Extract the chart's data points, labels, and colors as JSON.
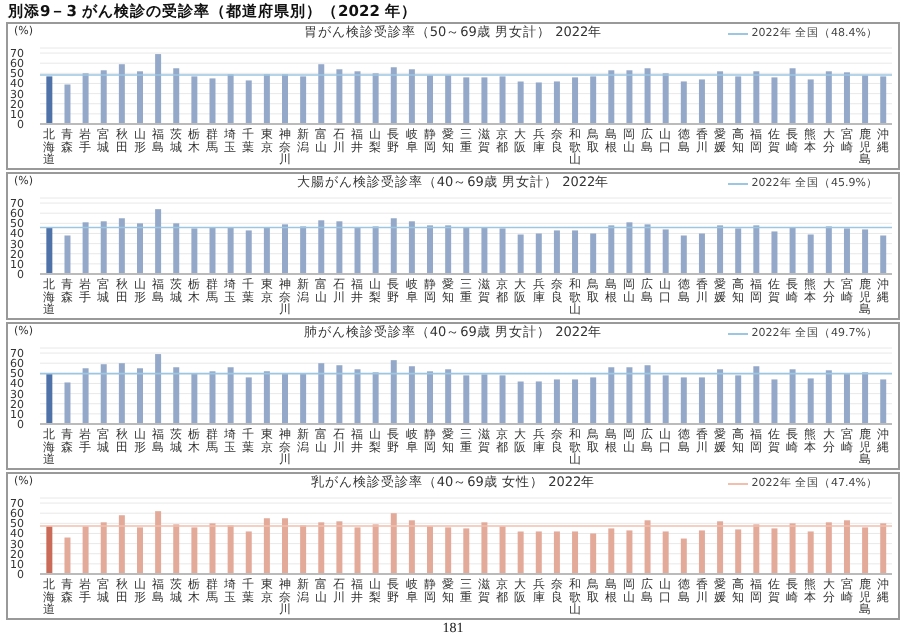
{
  "chart_data": [
    {
      "type": "bar",
      "title": "胃がん検診受診率（50～69歳 男女計） 2022年",
      "ylabel": "(%)",
      "annotations": [
        "別添9－3 がん検診の受診率（都道府県別）（2022 年）"
      ],
      "categories": [
        "北海道",
        "青森",
        "岩手",
        "宮城",
        "秋田",
        "山形",
        "福島",
        "茨城",
        "栃木",
        "群馬",
        "埼玉",
        "千葉",
        "東京",
        "神奈川",
        "新潟",
        "富山",
        "石川",
        "福井",
        "山梨",
        "長野",
        "岐阜",
        "静岡",
        "愛知",
        "三重",
        "滋賀",
        "京都",
        "大阪",
        "兵庫",
        "奈良",
        "和歌山",
        "鳥取",
        "島根",
        "岡山",
        "広島",
        "山口",
        "徳島",
        "香川",
        "愛媛",
        "高知",
        "福岡",
        "佐賀",
        "長崎",
        "熊本",
        "大分",
        "宮崎",
        "鹿児島",
        "沖縄"
      ],
      "values": [
        47,
        39,
        50,
        53,
        59,
        52,
        69,
        55,
        47,
        45,
        49,
        43,
        49,
        49,
        47,
        59,
        54,
        52,
        50,
        56,
        54,
        48,
        48,
        46,
        46,
        47,
        42,
        41,
        42,
        46,
        47,
        53,
        53,
        55,
        50,
        42,
        44,
        52,
        47,
        52,
        46,
        55,
        44,
        52,
        51,
        48,
        47
      ],
      "colors": [
        "#4f72a8",
        "#94a9c9",
        "#94a9c9",
        "#94a9c9",
        "#94a9c9",
        "#94a9c9",
        "#94a9c9",
        "#94a9c9",
        "#94a9c9",
        "#94a9c9",
        "#94a9c9",
        "#94a9c9",
        "#94a9c9",
        "#94a9c9",
        "#94a9c9",
        "#94a9c9",
        "#94a9c9",
        "#94a9c9",
        "#94a9c9",
        "#94a9c9",
        "#94a9c9",
        "#94a9c9",
        "#94a9c9",
        "#94a9c9",
        "#94a9c9",
        "#94a9c9",
        "#94a9c9",
        "#94a9c9",
        "#94a9c9",
        "#94a9c9",
        "#94a9c9",
        "#94a9c9",
        "#94a9c9",
        "#94a9c9",
        "#94a9c9",
        "#94a9c9",
        "#94a9c9",
        "#94a9c9",
        "#94a9c9",
        "#94a9c9",
        "#94a9c9",
        "#94a9c9",
        "#94a9c9",
        "#94a9c9",
        "#94a9c9",
        "#94a9c9",
        "#94a9c9"
      ],
      "ylim": [
        0,
        75
      ],
      "yticks": [
        0,
        10,
        20,
        30,
        40,
        50,
        60,
        70
      ],
      "grid": "y",
      "legend": "top right",
      "ref_lines": [
        {
          "axis": "y",
          "value": 48.4,
          "label": "2022年 全国（48.4%）",
          "color": "#9cc6e2"
        }
      ]
    },
    {
      "type": "bar",
      "title": "大腸がん検診受診率（40～69歳 男女計） 2022年",
      "ylabel": "(%)",
      "categories": [
        "北海道",
        "青森",
        "岩手",
        "宮城",
        "秋田",
        "山形",
        "福島",
        "茨城",
        "栃木",
        "群馬",
        "埼玉",
        "千葉",
        "東京",
        "神奈川",
        "新潟",
        "富山",
        "石川",
        "福井",
        "山梨",
        "長野",
        "岐阜",
        "静岡",
        "愛知",
        "三重",
        "滋賀",
        "京都",
        "大阪",
        "兵庫",
        "奈良",
        "和歌山",
        "鳥取",
        "島根",
        "岡山",
        "広島",
        "山口",
        "徳島",
        "香川",
        "愛媛",
        "高知",
        "福岡",
        "佐賀",
        "長崎",
        "熊本",
        "大分",
        "宮崎",
        "鹿児島",
        "沖縄"
      ],
      "values": [
        46,
        38,
        51,
        52,
        55,
        50,
        64,
        50,
        45,
        46,
        46,
        43,
        46,
        49,
        47,
        53,
        52,
        46,
        47,
        55,
        52,
        48,
        48,
        46,
        46,
        45,
        39,
        40,
        43,
        43,
        40,
        48,
        51,
        49,
        44,
        38,
        40,
        48,
        45,
        48,
        42,
        46,
        39,
        47,
        45,
        44,
        38
      ],
      "colors": [
        "#4f72a8",
        "#94a9c9",
        "#94a9c9",
        "#94a9c9",
        "#94a9c9",
        "#94a9c9",
        "#94a9c9",
        "#94a9c9",
        "#94a9c9",
        "#94a9c9",
        "#94a9c9",
        "#94a9c9",
        "#94a9c9",
        "#94a9c9",
        "#94a9c9",
        "#94a9c9",
        "#94a9c9",
        "#94a9c9",
        "#94a9c9",
        "#94a9c9",
        "#94a9c9",
        "#94a9c9",
        "#94a9c9",
        "#94a9c9",
        "#94a9c9",
        "#94a9c9",
        "#94a9c9",
        "#94a9c9",
        "#94a9c9",
        "#94a9c9",
        "#94a9c9",
        "#94a9c9",
        "#94a9c9",
        "#94a9c9",
        "#94a9c9",
        "#94a9c9",
        "#94a9c9",
        "#94a9c9",
        "#94a9c9",
        "#94a9c9",
        "#94a9c9",
        "#94a9c9",
        "#94a9c9",
        "#94a9c9",
        "#94a9c9",
        "#94a9c9",
        "#94a9c9"
      ],
      "ylim": [
        0,
        75
      ],
      "yticks": [
        0,
        10,
        20,
        30,
        40,
        50,
        60,
        70
      ],
      "grid": "y",
      "legend": "top right",
      "ref_lines": [
        {
          "axis": "y",
          "value": 45.9,
          "label": "2022年 全国（45.9%）",
          "color": "#9cc6e2"
        }
      ]
    },
    {
      "type": "bar",
      "title": "肺がん検診受診率（40～69歳 男女計） 2022年",
      "ylabel": "(%)",
      "categories": [
        "北海道",
        "青森",
        "岩手",
        "宮城",
        "秋田",
        "山形",
        "福島",
        "茨城",
        "栃木",
        "群馬",
        "埼玉",
        "千葉",
        "東京",
        "神奈川",
        "新潟",
        "富山",
        "石川",
        "福井",
        "山梨",
        "長野",
        "岐阜",
        "静岡",
        "愛知",
        "三重",
        "滋賀",
        "京都",
        "大阪",
        "兵庫",
        "奈良",
        "和歌山",
        "鳥取",
        "島根",
        "岡山",
        "広島",
        "山口",
        "徳島",
        "香川",
        "愛媛",
        "高知",
        "福岡",
        "佐賀",
        "長崎",
        "熊本",
        "大分",
        "宮崎",
        "鹿児島",
        "沖縄"
      ],
      "values": [
        50,
        41,
        55,
        59,
        60,
        55,
        69,
        56,
        50,
        52,
        56,
        46,
        52,
        50,
        50,
        60,
        58,
        54,
        51,
        63,
        57,
        52,
        54,
        48,
        49,
        48,
        42,
        42,
        44,
        44,
        46,
        56,
        56,
        58,
        48,
        46,
        46,
        54,
        48,
        57,
        44,
        54,
        45,
        53,
        50,
        51,
        44
      ],
      "colors": [
        "#4f72a8",
        "#94a9c9",
        "#94a9c9",
        "#94a9c9",
        "#94a9c9",
        "#94a9c9",
        "#94a9c9",
        "#94a9c9",
        "#94a9c9",
        "#94a9c9",
        "#94a9c9",
        "#94a9c9",
        "#94a9c9",
        "#94a9c9",
        "#94a9c9",
        "#94a9c9",
        "#94a9c9",
        "#94a9c9",
        "#94a9c9",
        "#94a9c9",
        "#94a9c9",
        "#94a9c9",
        "#94a9c9",
        "#94a9c9",
        "#94a9c9",
        "#94a9c9",
        "#94a9c9",
        "#94a9c9",
        "#94a9c9",
        "#94a9c9",
        "#94a9c9",
        "#94a9c9",
        "#94a9c9",
        "#94a9c9",
        "#94a9c9",
        "#94a9c9",
        "#94a9c9",
        "#94a9c9",
        "#94a9c9",
        "#94a9c9",
        "#94a9c9",
        "#94a9c9",
        "#94a9c9",
        "#94a9c9",
        "#94a9c9",
        "#94a9c9",
        "#94a9c9"
      ],
      "ylim": [
        0,
        75
      ],
      "yticks": [
        0,
        10,
        20,
        30,
        40,
        50,
        60,
        70
      ],
      "grid": "y",
      "legend": "top right",
      "ref_lines": [
        {
          "axis": "y",
          "value": 49.7,
          "label": "2022年 全国（49.7%）",
          "color": "#9cc6e2"
        }
      ]
    },
    {
      "type": "bar",
      "title": "乳がん検診受診率（40～69歳 女性） 2022年",
      "ylabel": "(%)",
      "annotations": [
        "181"
      ],
      "categories": [
        "北海道",
        "青森",
        "岩手",
        "宮城",
        "秋田",
        "山形",
        "福島",
        "茨城",
        "栃木",
        "群馬",
        "埼玉",
        "千葉",
        "東京",
        "神奈川",
        "新潟",
        "富山",
        "石川",
        "福井",
        "山梨",
        "長野",
        "岐阜",
        "静岡",
        "愛知",
        "三重",
        "滋賀",
        "京都",
        "大阪",
        "兵庫",
        "奈良",
        "和歌山",
        "鳥取",
        "島根",
        "岡山",
        "広島",
        "山口",
        "徳島",
        "香川",
        "愛媛",
        "高知",
        "福岡",
        "佐賀",
        "長崎",
        "熊本",
        "大分",
        "宮崎",
        "鹿児島",
        "沖縄"
      ],
      "values": [
        47,
        36,
        47,
        51,
        58,
        46,
        62,
        49,
        46,
        50,
        48,
        42,
        55,
        55,
        48,
        51,
        52,
        46,
        49,
        60,
        53,
        47,
        46,
        45,
        51,
        47,
        42,
        42,
        42,
        42,
        40,
        45,
        43,
        53,
        42,
        35,
        43,
        52,
        44,
        49,
        45,
        50,
        42,
        51,
        53,
        46,
        50
      ],
      "colors": [
        "#c96b58",
        "#e3aa9a",
        "#e3aa9a",
        "#e3aa9a",
        "#e3aa9a",
        "#e3aa9a",
        "#e3aa9a",
        "#e3aa9a",
        "#e3aa9a",
        "#e3aa9a",
        "#e3aa9a",
        "#e3aa9a",
        "#e3aa9a",
        "#e3aa9a",
        "#e3aa9a",
        "#e3aa9a",
        "#e3aa9a",
        "#e3aa9a",
        "#e3aa9a",
        "#e3aa9a",
        "#e3aa9a",
        "#e3aa9a",
        "#e3aa9a",
        "#e3aa9a",
        "#e3aa9a",
        "#e3aa9a",
        "#e3aa9a",
        "#e3aa9a",
        "#e3aa9a",
        "#e3aa9a",
        "#e3aa9a",
        "#e3aa9a",
        "#e3aa9a",
        "#e3aa9a",
        "#e3aa9a",
        "#e3aa9a",
        "#e3aa9a",
        "#e3aa9a",
        "#e3aa9a",
        "#e3aa9a",
        "#e3aa9a",
        "#e3aa9a",
        "#e3aa9a",
        "#e3aa9a",
        "#e3aa9a",
        "#e3aa9a",
        "#e3aa9a"
      ],
      "ylim": [
        0,
        75
      ],
      "yticks": [
        0,
        10,
        20,
        30,
        40,
        50,
        60,
        70
      ],
      "grid": "y",
      "legend": "top right",
      "ref_lines": [
        {
          "axis": "y",
          "value": 47.4,
          "label": "2022年 全国（47.4%）",
          "color": "#f2bfae"
        }
      ]
    }
  ]
}
